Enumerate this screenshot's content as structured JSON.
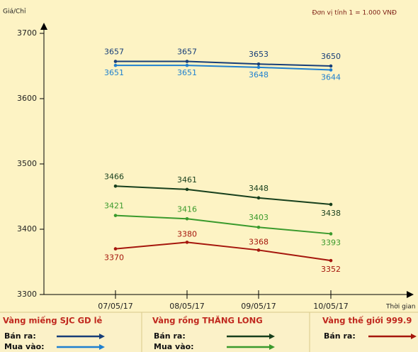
{
  "chart_data": {
    "type": "line",
    "y_label": "Giá/Chỉ",
    "unit_note": "Đơn vị tính 1 = 1.000 VNĐ",
    "x_label": "Thời gian",
    "categories": [
      "07/05/17",
      "08/05/17",
      "09/05/17",
      "10/05/17"
    ],
    "ylim": [
      3300,
      3700
    ],
    "yticks": [
      3300,
      3400,
      3500,
      3600,
      3700
    ],
    "series_groups": [
      {
        "title": "Vàng miếng SJC GD lẻ",
        "series": [
          {
            "name": "Bán ra:",
            "color": "#173e78",
            "values": [
              3657,
              3657,
              3653,
              3650
            ]
          },
          {
            "name": "Mua vào:",
            "color": "#1f80d0",
            "values": [
              3651,
              3651,
              3648,
              3644
            ]
          }
        ]
      },
      {
        "title": "Vàng rồng THĂNG LONG",
        "series": [
          {
            "name": "Bán ra:",
            "color": "#173f1c",
            "values": [
              3466,
              3461,
              3448,
              3438
            ]
          },
          {
            "name": "Mua vào:",
            "color": "#3a9a2c",
            "values": [
              3421,
              3416,
              3403,
              3393
            ]
          }
        ]
      },
      {
        "title": "Vàng thế giới 999.9",
        "series": [
          {
            "name": "Bán ra:",
            "color": "#a5160c",
            "values": [
              3370,
              3380,
              3368,
              3352
            ]
          }
        ]
      }
    ]
  }
}
